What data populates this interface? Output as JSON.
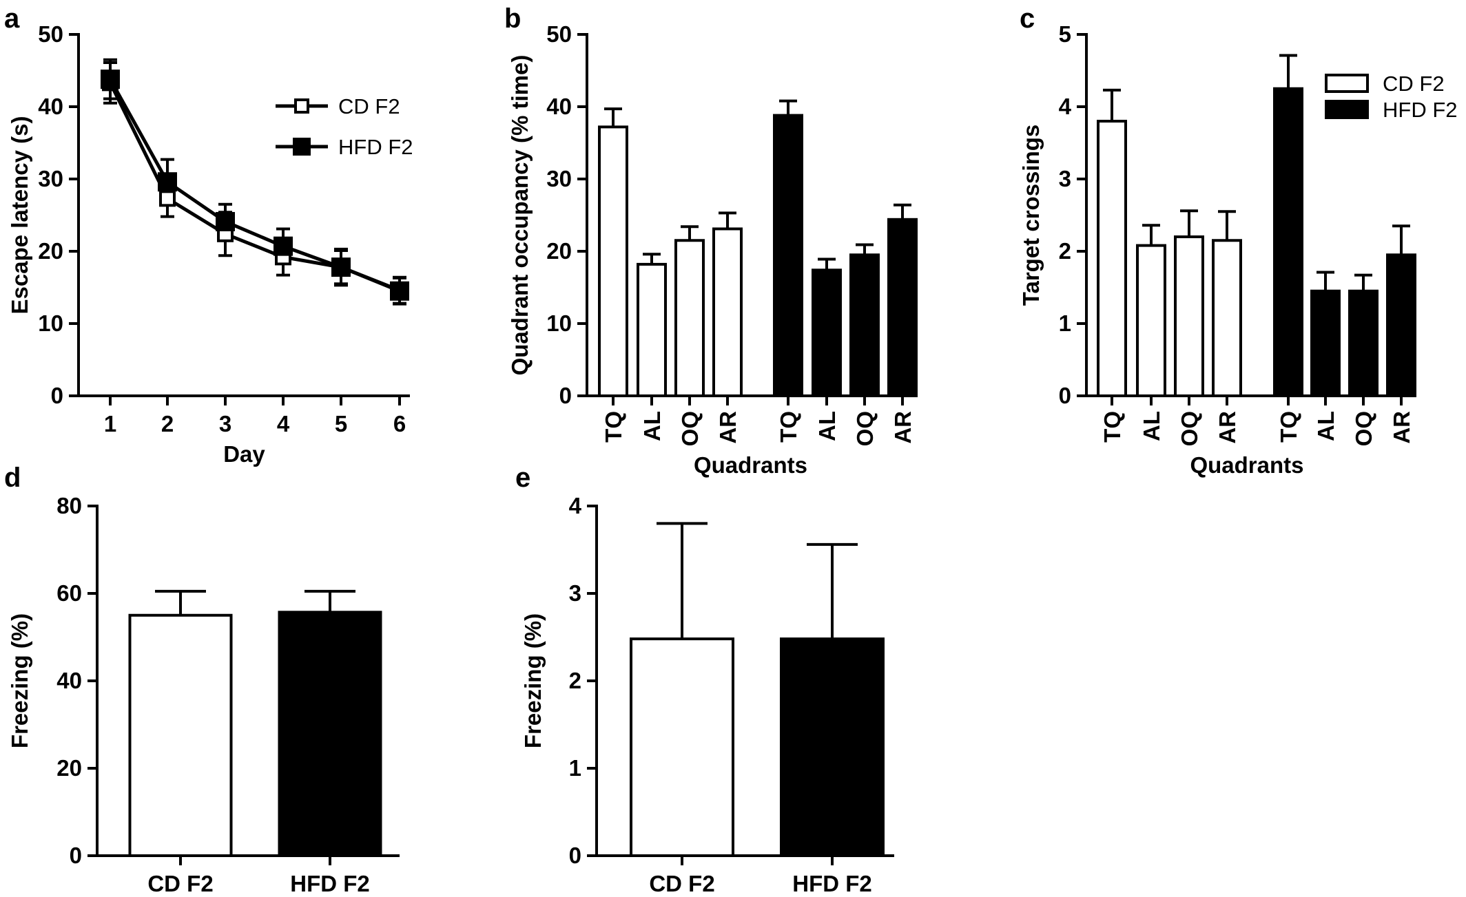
{
  "colors": {
    "open_fill": "#ffffff",
    "filled": "#000000",
    "ink": "#000000"
  },
  "panels": {
    "a": {
      "letter": "a"
    },
    "b": {
      "letter": "b"
    },
    "c": {
      "letter": "c"
    },
    "d": {
      "letter": "d"
    },
    "e": {
      "letter": "e"
    }
  },
  "chart_data": [
    {
      "panel": "a",
      "type": "line",
      "xlabel": "Day",
      "ylabel": "Escape latency (s)",
      "x": [
        1,
        2,
        3,
        4,
        5,
        6
      ],
      "xticks": [
        "1",
        "2",
        "3",
        "4",
        "5",
        "6"
      ],
      "ylim": [
        0,
        50
      ],
      "yticks": [
        0,
        10,
        20,
        30,
        40,
        50
      ],
      "legend": "top-right",
      "series": [
        {
          "name": "CD F2",
          "marker": "open-square",
          "values": [
            43.3,
            27.3,
            22.4,
            19.2,
            17.8,
            14.6
          ],
          "errors": [
            2.8,
            2.5,
            3.0,
            2.5,
            2.3,
            1.8
          ]
        },
        {
          "name": "HFD F2",
          "marker": "filled-square",
          "values": [
            43.8,
            29.6,
            24.1,
            20.7,
            17.8,
            14.5
          ],
          "errors": [
            2.7,
            3.1,
            2.4,
            2.4,
            2.5,
            1.8
          ]
        }
      ]
    },
    {
      "panel": "b",
      "type": "bar",
      "xlabel": "Quadrants",
      "ylabel": "Quadrant occupancy (% time)",
      "ylim": [
        0,
        50
      ],
      "yticks": [
        0,
        10,
        20,
        30,
        40,
        50
      ],
      "groups": [
        {
          "name": "CD F2",
          "style": "open",
          "categories": [
            "TQ",
            "AL",
            "OQ",
            "AR"
          ],
          "values": [
            37.2,
            18.2,
            21.5,
            23.1
          ],
          "errors": [
            2.5,
            1.4,
            1.9,
            2.2
          ]
        },
        {
          "name": "HFD F2",
          "style": "filled",
          "categories": [
            "TQ",
            "AL",
            "OQ",
            "AR"
          ],
          "values": [
            38.8,
            17.4,
            19.5,
            24.4
          ],
          "errors": [
            2.0,
            1.5,
            1.4,
            2.0
          ]
        }
      ]
    },
    {
      "panel": "c",
      "type": "bar",
      "xlabel": "Quadrants",
      "ylabel": "Target crossings",
      "ylim": [
        0,
        5
      ],
      "yticks": [
        0,
        1,
        2,
        3,
        4,
        5
      ],
      "legend": "top-right",
      "groups": [
        {
          "name": "CD F2",
          "style": "open",
          "categories": [
            "TQ",
            "AL",
            "OQ",
            "AR"
          ],
          "values": [
            3.8,
            2.08,
            2.2,
            2.15
          ],
          "errors": [
            0.43,
            0.28,
            0.36,
            0.4
          ]
        },
        {
          "name": "HFD F2",
          "style": "filled",
          "categories": [
            "TQ",
            "AL",
            "OQ",
            "AR"
          ],
          "values": [
            4.25,
            1.45,
            1.45,
            1.95
          ],
          "errors": [
            0.46,
            0.26,
            0.22,
            0.4
          ]
        }
      ]
    },
    {
      "panel": "d",
      "type": "bar",
      "ylabel": "Freezing (%)",
      "ylim": [
        0,
        80
      ],
      "yticks": [
        0,
        20,
        40,
        60,
        80
      ],
      "categories": [
        "CD F2",
        "HFD F2"
      ],
      "styles": [
        "open",
        "filled"
      ],
      "values": [
        55,
        55.7
      ],
      "errors": [
        5.5,
        4.8
      ]
    },
    {
      "panel": "e",
      "type": "bar",
      "ylabel": "Freezing (%)",
      "ylim": [
        0,
        4
      ],
      "yticks": [
        0,
        1,
        2,
        3,
        4
      ],
      "categories": [
        "CD F2",
        "HFD F2"
      ],
      "styles": [
        "open",
        "filled"
      ],
      "values": [
        2.48,
        2.48
      ],
      "errors": [
        1.32,
        1.08
      ]
    }
  ]
}
